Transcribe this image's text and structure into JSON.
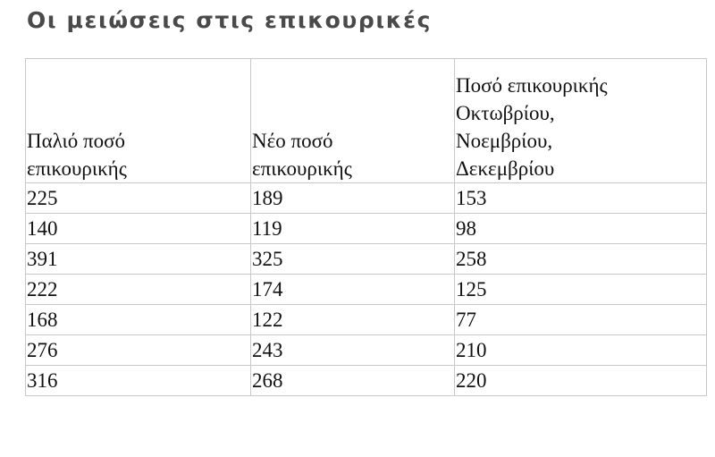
{
  "title": "Οι μειώσεις στις επικουρικές",
  "table": {
    "headers": [
      [
        "Παλιό ποσό",
        "επικουρικής"
      ],
      [
        "Νέο ποσό",
        "επικουρικής"
      ],
      [
        "Ποσό επικουρικής",
        "Οκτωβρίου,",
        "Νοεμβρίου,",
        "Δεκεμβρίου"
      ]
    ],
    "rows": [
      [
        "225",
        "189",
        "153"
      ],
      [
        "140",
        "119",
        "98"
      ],
      [
        "391",
        "325",
        "258"
      ],
      [
        "222",
        "174",
        "125"
      ],
      [
        "168",
        "122",
        "77"
      ],
      [
        "276",
        "243",
        "210"
      ],
      [
        "316",
        "268",
        "220"
      ]
    ]
  }
}
